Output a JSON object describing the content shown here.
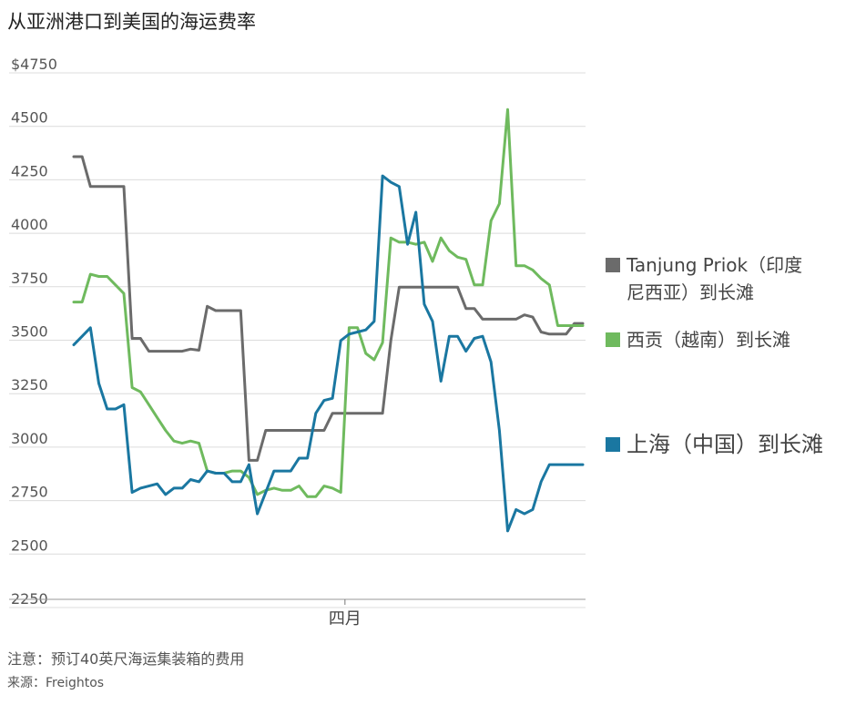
{
  "title": "从亚洲港口到美国的海运费率",
  "note": "注意：预订40英尺海运集装箱的费用",
  "source": "来源：Freightos",
  "chart_data": {
    "type": "line",
    "title": "从亚洲港口到美国的海运费率",
    "xlabel": "",
    "ylabel": "",
    "ylim": [
      2250,
      4750
    ],
    "ytick_labels": [
      "$4750",
      "4500",
      "4250",
      "4000",
      "3750",
      "3500",
      "3250",
      "3000",
      "2750",
      "2500",
      "2250"
    ],
    "ytick_values": [
      4750,
      4500,
      4250,
      4000,
      3750,
      3500,
      3250,
      3000,
      2750,
      2500,
      2250
    ],
    "xlim": [
      0,
      61
    ],
    "xtick_labels": [
      "四月"
    ],
    "xtick_values": [
      32.5
    ],
    "grid": true,
    "legend_position": "right",
    "series": [
      {
        "name": "Tanjung Priok（印度尼西亚）到长滩",
        "color": "#6b6b6b",
        "x": [
          0,
          1,
          2,
          3,
          4,
          5,
          6,
          7,
          8,
          9,
          10,
          11,
          12,
          13,
          14,
          15,
          16,
          17,
          18,
          19,
          20,
          21,
          22,
          23,
          24,
          25,
          26,
          27,
          28,
          29,
          30,
          31,
          32,
          33,
          34,
          35,
          36,
          37,
          38,
          39,
          40,
          41,
          42,
          43,
          44,
          45,
          46,
          47,
          48,
          49,
          50,
          51,
          52,
          53,
          54,
          55,
          56,
          57,
          58,
          59,
          60,
          61
        ],
        "values": [
          4320,
          4320,
          4180,
          4180,
          4180,
          4180,
          4180,
          3470,
          3470,
          3410,
          3410,
          3410,
          3410,
          3410,
          3420,
          3415,
          3620,
          3600,
          3600,
          3600,
          3600,
          2900,
          2900,
          3040,
          3040,
          3040,
          3040,
          3040,
          3040,
          3040,
          3040,
          3120,
          3120,
          3120,
          3120,
          3120,
          3120,
          3120,
          3460,
          3710,
          3710,
          3710,
          3710,
          3710,
          3710,
          3710,
          3710,
          3610,
          3610,
          3560,
          3560,
          3560,
          3560,
          3560,
          3580,
          3570,
          3500,
          3490,
          3490,
          3490,
          3540,
          3540
        ]
      },
      {
        "name": "西贡（越南）到长滩",
        "color": "#6fba5e",
        "x": [
          0,
          1,
          2,
          3,
          4,
          5,
          6,
          7,
          8,
          9,
          10,
          11,
          12,
          13,
          14,
          15,
          16,
          17,
          18,
          19,
          20,
          21,
          22,
          23,
          24,
          25,
          26,
          27,
          28,
          29,
          30,
          31,
          32,
          33,
          34,
          35,
          36,
          37,
          38,
          39,
          40,
          41,
          42,
          43,
          44,
          45,
          46,
          47,
          48,
          49,
          50,
          51,
          52,
          53,
          54,
          55,
          56,
          57,
          58,
          59,
          60,
          61
        ],
        "values": [
          3640,
          3640,
          3770,
          3760,
          3760,
          3720,
          3680,
          3240,
          3220,
          3160,
          3100,
          3040,
          2990,
          2980,
          2990,
          2980,
          2850,
          2840,
          2840,
          2850,
          2850,
          2820,
          2740,
          2760,
          2770,
          2760,
          2760,
          2780,
          2730,
          2730,
          2780,
          2770,
          2750,
          3520,
          3520,
          3400,
          3370,
          3450,
          3940,
          3920,
          3920,
          3910,
          3920,
          3830,
          3940,
          3880,
          3850,
          3840,
          3720,
          3720,
          4020,
          4100,
          4540,
          3810,
          3810,
          3790,
          3750,
          3720,
          3530,
          3530,
          3530,
          3530
        ]
      },
      {
        "name": "上海（中国）到长滩",
        "color": "#1a77a1",
        "x": [
          0,
          1,
          2,
          3,
          4,
          5,
          6,
          7,
          8,
          9,
          10,
          11,
          12,
          13,
          14,
          15,
          16,
          17,
          18,
          19,
          20,
          21,
          22,
          23,
          24,
          25,
          26,
          27,
          28,
          29,
          30,
          31,
          32,
          33,
          34,
          35,
          36,
          37,
          38,
          39,
          40,
          41,
          42,
          43,
          44,
          45,
          46,
          47,
          48,
          49,
          50,
          51,
          52,
          53,
          54,
          55,
          56,
          57,
          58,
          59,
          60,
          61
        ],
        "values": [
          3440,
          3480,
          3520,
          3260,
          3140,
          3140,
          3160,
          2750,
          2770,
          2780,
          2790,
          2740,
          2770,
          2770,
          2810,
          2800,
          2850,
          2840,
          2840,
          2800,
          2800,
          2880,
          2650,
          2750,
          2850,
          2850,
          2850,
          2910,
          2910,
          3120,
          3180,
          3190,
          3460,
          3490,
          3500,
          3510,
          3550,
          4230,
          4200,
          4180,
          3910,
          4060,
          3630,
          3550,
          3270,
          3480,
          3480,
          3410,
          3470,
          3480,
          3360,
          3040,
          2570,
          2670,
          2650,
          2670,
          2800,
          2880,
          2880,
          2880,
          2880,
          2880
        ]
      }
    ]
  }
}
